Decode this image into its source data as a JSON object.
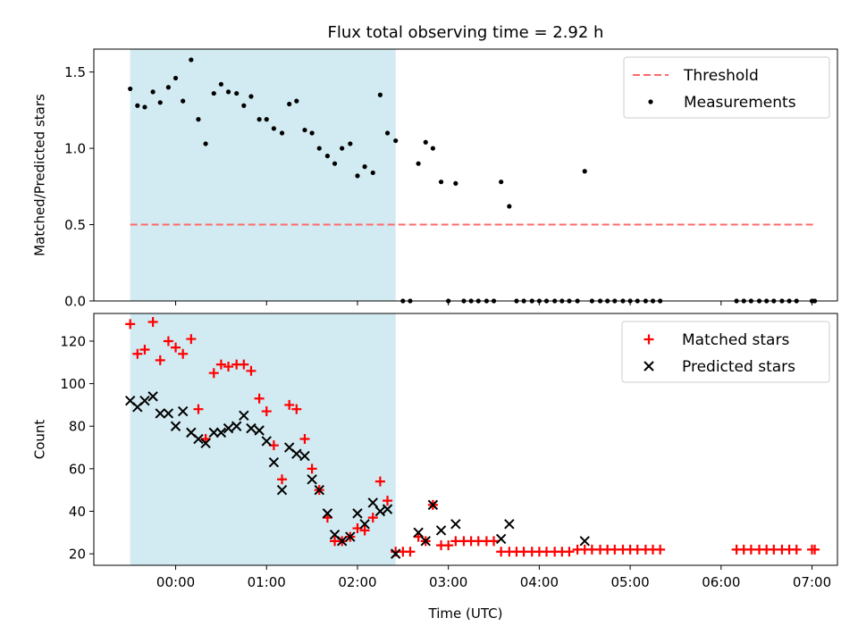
{
  "chart_data": [
    {
      "type": "scatter",
      "title": "Flux total observing time = 2.92 h",
      "xlabel": "",
      "ylabel": "Matched/Predicted stars",
      "ylim": [
        0,
        1.65
      ],
      "xlim": [
        -0.9,
        7.28
      ],
      "yticks": [
        0.0,
        0.5,
        1.0,
        1.5
      ],
      "ytick_labels": [
        "0.0",
        "0.5",
        "1.0",
        "1.5"
      ],
      "grid": false,
      "legend_position": "top-right",
      "shaded_region": {
        "x": [
          -0.5,
          2.42
        ],
        "color": "#add8e6"
      },
      "threshold": {
        "name": "Threshold",
        "value": 0.5,
        "x": [
          -0.5,
          7.03
        ],
        "color": "#ff6b6b",
        "style": "dashed"
      },
      "series": [
        {
          "name": "Measurements",
          "color": "#000000",
          "marker": "dot",
          "points": [
            [
              -0.5,
              1.39
            ],
            [
              -0.42,
              1.28
            ],
            [
              -0.34,
              1.27
            ],
            [
              -0.25,
              1.37
            ],
            [
              -0.17,
              1.3
            ],
            [
              -0.08,
              1.4
            ],
            [
              0.0,
              1.46
            ],
            [
              0.08,
              1.31
            ],
            [
              0.17,
              1.58
            ],
            [
              0.25,
              1.19
            ],
            [
              0.33,
              1.03
            ],
            [
              0.42,
              1.36
            ],
            [
              0.5,
              1.42
            ],
            [
              0.58,
              1.37
            ],
            [
              0.67,
              1.36
            ],
            [
              0.75,
              1.28
            ],
            [
              0.83,
              1.34
            ],
            [
              0.92,
              1.19
            ],
            [
              1.0,
              1.19
            ],
            [
              1.08,
              1.13
            ],
            [
              1.17,
              1.1
            ],
            [
              1.25,
              1.29
            ],
            [
              1.33,
              1.31
            ],
            [
              1.42,
              1.12
            ],
            [
              1.5,
              1.1
            ],
            [
              1.58,
              1.0
            ],
            [
              1.67,
              0.95
            ],
            [
              1.75,
              0.9
            ],
            [
              1.83,
              1.0
            ],
            [
              1.92,
              1.03
            ],
            [
              2.0,
              0.82
            ],
            [
              2.08,
              0.88
            ],
            [
              2.17,
              0.84
            ],
            [
              2.25,
              1.35
            ],
            [
              2.33,
              1.1
            ],
            [
              2.42,
              1.05
            ],
            [
              2.5,
              0.0
            ],
            [
              2.58,
              0.0
            ],
            [
              2.67,
              0.9
            ],
            [
              2.75,
              1.04
            ],
            [
              2.83,
              1.0
            ],
            [
              2.92,
              0.78
            ],
            [
              3.0,
              0.0
            ],
            [
              3.08,
              0.77
            ],
            [
              3.17,
              0.0
            ],
            [
              3.25,
              0.0
            ],
            [
              3.33,
              0.0
            ],
            [
              3.42,
              0.0
            ],
            [
              3.5,
              0.0
            ],
            [
              3.58,
              0.78
            ],
            [
              3.67,
              0.62
            ],
            [
              3.75,
              0.0
            ],
            [
              3.83,
              0.0
            ],
            [
              3.92,
              0.0
            ],
            [
              4.0,
              0.0
            ],
            [
              4.08,
              0.0
            ],
            [
              4.17,
              0.0
            ],
            [
              4.25,
              0.0
            ],
            [
              4.33,
              0.0
            ],
            [
              4.42,
              0.0
            ],
            [
              4.5,
              0.85
            ],
            [
              4.58,
              0.0
            ],
            [
              4.67,
              0.0
            ],
            [
              4.75,
              0.0
            ],
            [
              4.83,
              0.0
            ],
            [
              4.92,
              0.0
            ],
            [
              5.0,
              0.0
            ],
            [
              5.08,
              0.0
            ],
            [
              5.17,
              0.0
            ],
            [
              5.25,
              0.0
            ],
            [
              5.33,
              0.0
            ],
            [
              6.17,
              0.0
            ],
            [
              6.25,
              0.0
            ],
            [
              6.33,
              0.0
            ],
            [
              6.42,
              0.0
            ],
            [
              6.5,
              0.0
            ],
            [
              6.58,
              0.0
            ],
            [
              6.67,
              0.0
            ],
            [
              6.75,
              0.0
            ],
            [
              6.83,
              0.0
            ],
            [
              7.0,
              0.0
            ],
            [
              7.03,
              0.0
            ]
          ]
        }
      ]
    },
    {
      "type": "scatter",
      "title": "",
      "xlabel": "Time (UTC)",
      "ylabel": "Count",
      "ylim": [
        14.6,
        133
      ],
      "xlim": [
        -0.9,
        7.28
      ],
      "yticks": [
        20,
        40,
        60,
        80,
        100,
        120
      ],
      "ytick_labels": [
        "20",
        "40",
        "60",
        "80",
        "100",
        "120"
      ],
      "xticks": [
        0,
        1,
        2,
        3,
        4,
        5,
        6,
        7
      ],
      "xtick_labels": [
        "00:00",
        "01:00",
        "02:00",
        "03:00",
        "04:00",
        "05:00",
        "06:00",
        "07:00"
      ],
      "grid": false,
      "legend_position": "top-right",
      "shaded_region": {
        "x": [
          -0.5,
          2.42
        ],
        "color": "#add8e6"
      },
      "series": [
        {
          "name": "Matched stars",
          "color": "#ff0000",
          "marker": "plus",
          "points": [
            [
              -0.5,
              128
            ],
            [
              -0.42,
              114
            ],
            [
              -0.34,
              116
            ],
            [
              -0.25,
              129
            ],
            [
              -0.17,
              111
            ],
            [
              -0.08,
              120
            ],
            [
              0.0,
              117
            ],
            [
              0.08,
              114
            ],
            [
              0.17,
              121
            ],
            [
              0.25,
              88
            ],
            [
              0.33,
              74
            ],
            [
              0.42,
              105
            ],
            [
              0.5,
              109
            ],
            [
              0.58,
              108
            ],
            [
              0.67,
              109
            ],
            [
              0.75,
              109
            ],
            [
              0.83,
              106
            ],
            [
              0.92,
              93
            ],
            [
              1.0,
              87
            ],
            [
              1.08,
              71
            ],
            [
              1.17,
              55
            ],
            [
              1.25,
              90
            ],
            [
              1.33,
              88
            ],
            [
              1.42,
              74
            ],
            [
              1.5,
              60
            ],
            [
              1.58,
              50
            ],
            [
              1.67,
              37
            ],
            [
              1.75,
              26
            ],
            [
              1.83,
              26
            ],
            [
              1.92,
              28
            ],
            [
              2.0,
              32
            ],
            [
              2.08,
              31
            ],
            [
              2.17,
              37
            ],
            [
              2.25,
              54
            ],
            [
              2.33,
              45
            ],
            [
              2.42,
              21
            ],
            [
              2.5,
              21
            ],
            [
              2.58,
              21
            ],
            [
              2.67,
              28
            ],
            [
              2.75,
              26
            ],
            [
              2.83,
              43
            ],
            [
              2.92,
              24
            ],
            [
              3.0,
              24
            ],
            [
              3.08,
              26
            ],
            [
              3.17,
              26
            ],
            [
              3.25,
              26
            ],
            [
              3.33,
              26
            ],
            [
              3.42,
              26
            ],
            [
              3.5,
              26
            ],
            [
              3.58,
              21
            ],
            [
              3.67,
              21
            ],
            [
              3.75,
              21
            ],
            [
              3.83,
              21
            ],
            [
              3.92,
              21
            ],
            [
              4.0,
              21
            ],
            [
              4.08,
              21
            ],
            [
              4.17,
              21
            ],
            [
              4.25,
              21
            ],
            [
              4.33,
              21
            ],
            [
              4.42,
              22
            ],
            [
              4.5,
              22
            ],
            [
              4.58,
              22
            ],
            [
              4.67,
              22
            ],
            [
              4.75,
              22
            ],
            [
              4.83,
              22
            ],
            [
              4.92,
              22
            ],
            [
              5.0,
              22
            ],
            [
              5.08,
              22
            ],
            [
              5.17,
              22
            ],
            [
              5.25,
              22
            ],
            [
              5.33,
              22
            ],
            [
              6.17,
              22
            ],
            [
              6.25,
              22
            ],
            [
              6.33,
              22
            ],
            [
              6.42,
              22
            ],
            [
              6.5,
              22
            ],
            [
              6.58,
              22
            ],
            [
              6.67,
              22
            ],
            [
              6.75,
              22
            ],
            [
              6.83,
              22
            ],
            [
              7.0,
              22
            ],
            [
              7.03,
              22
            ]
          ]
        },
        {
          "name": "Predicted stars",
          "color": "#000000",
          "marker": "x",
          "points": [
            [
              -0.5,
              92
            ],
            [
              -0.42,
              89
            ],
            [
              -0.34,
              92
            ],
            [
              -0.25,
              94
            ],
            [
              -0.17,
              86
            ],
            [
              -0.08,
              86
            ],
            [
              0.0,
              80
            ],
            [
              0.08,
              87
            ],
            [
              0.17,
              77
            ],
            [
              0.25,
              74
            ],
            [
              0.33,
              72
            ],
            [
              0.42,
              77
            ],
            [
              0.5,
              77
            ],
            [
              0.58,
              79
            ],
            [
              0.67,
              80
            ],
            [
              0.75,
              85
            ],
            [
              0.83,
              79
            ],
            [
              0.92,
              78
            ],
            [
              1.0,
              73
            ],
            [
              1.08,
              63
            ],
            [
              1.17,
              50
            ],
            [
              1.25,
              70
            ],
            [
              1.33,
              67
            ],
            [
              1.42,
              66
            ],
            [
              1.5,
              55
            ],
            [
              1.58,
              50
            ],
            [
              1.67,
              39
            ],
            [
              1.75,
              29
            ],
            [
              1.83,
              26
            ],
            [
              1.92,
              28
            ],
            [
              2.0,
              39
            ],
            [
              2.08,
              34
            ],
            [
              2.17,
              44
            ],
            [
              2.25,
              40
            ],
            [
              2.33,
              41
            ],
            [
              2.42,
              20
            ],
            [
              2.67,
              30
            ],
            [
              2.75,
              26
            ],
            [
              2.83,
              43
            ],
            [
              2.92,
              31
            ],
            [
              3.08,
              34
            ],
            [
              3.58,
              27
            ],
            [
              3.67,
              34
            ],
            [
              4.5,
              26
            ]
          ]
        }
      ]
    }
  ]
}
